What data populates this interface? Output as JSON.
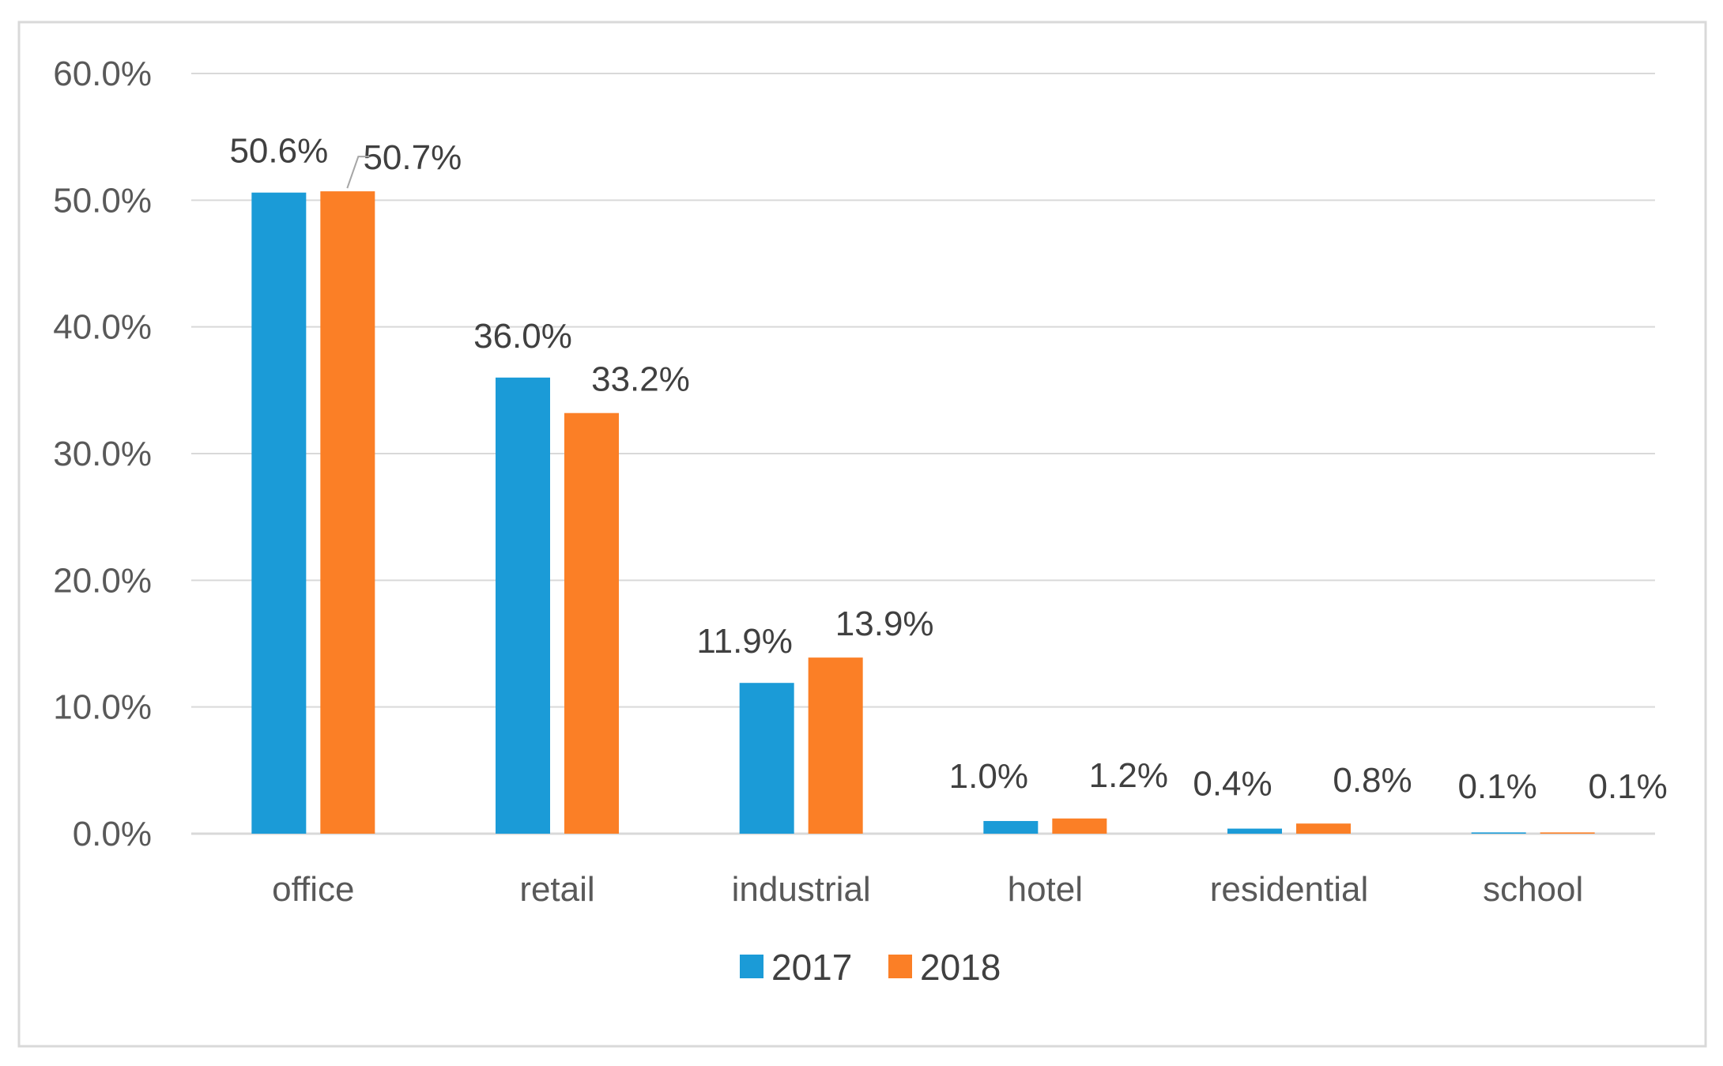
{
  "chart_data": {
    "type": "bar",
    "title": "",
    "xlabel": "",
    "ylabel": "",
    "categories": [
      "office",
      "retail",
      "industrial",
      "hotel",
      "residential",
      "school"
    ],
    "series": [
      {
        "name": "2017",
        "color": "#1b9bd7",
        "values": [
          50.6,
          36.0,
          11.9,
          1.0,
          0.4,
          0.1
        ],
        "labels": [
          "50.6%",
          "36.0%",
          "11.9%",
          "1.0%",
          "0.4%",
          "0.1%"
        ]
      },
      {
        "name": "2018",
        "color": "#fb7f26",
        "values": [
          50.7,
          33.2,
          13.9,
          1.2,
          0.8,
          0.1
        ],
        "labels": [
          "50.7%",
          "33.2%",
          "13.9%",
          "1.2%",
          "0.8%",
          "0.1%"
        ]
      }
    ],
    "ylim": [
      0,
      60
    ],
    "yticks": [
      0,
      10,
      20,
      30,
      40,
      50,
      60
    ],
    "ytick_labels": [
      "0.0%",
      "10.0%",
      "20.0%",
      "30.0%",
      "40.0%",
      "50.0%",
      "60.0%"
    ],
    "grid": true,
    "legend": "bottom-center",
    "gridline_color": "#d9d9d9",
    "frame_border_color": "#d9d9d9"
  }
}
